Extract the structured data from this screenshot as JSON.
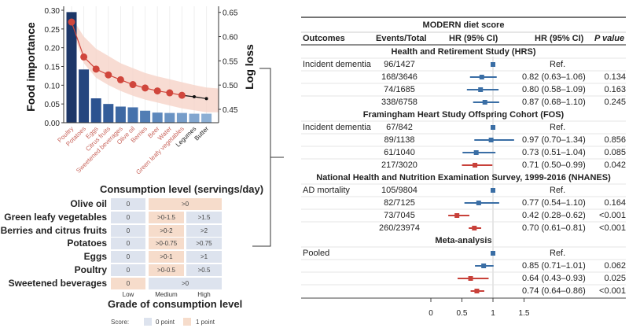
{
  "colors": {
    "bar_gradient": [
      "#1d3768",
      "#25467f",
      "#2c5290",
      "#345d9a",
      "#3d68a3",
      "#4672ac",
      "#527db4",
      "#5d88bc",
      "#6a93c3",
      "#769dc9",
      "#81a6cf",
      "#8cafd4"
    ],
    "line_red": "#d0463c",
    "band": "#f6d3c8",
    "label_red": "#c9665d",
    "cell_zero": "#dde3ee",
    "cell_one": "#f6dccb",
    "forest_blue": "#3a6ea5",
    "forest_red": "#c8413a"
  },
  "chart_data": [
    {
      "type": "bar",
      "categories": [
        "Poultry",
        "Potatoes",
        "Eggs",
        "Citrus fruits",
        "Sweetened beverages",
        "Olive oil",
        "Berries",
        "Beer",
        "Water",
        "Green leafy vegetables",
        "Legumes",
        "Butter"
      ],
      "category_label_highlight": [
        true,
        true,
        true,
        true,
        true,
        true,
        true,
        true,
        true,
        true,
        false,
        false
      ],
      "values": [
        0.295,
        0.142,
        0.065,
        0.05,
        0.043,
        0.041,
        0.032,
        0.027,
        0.026,
        0.026,
        0.024,
        0.024
      ],
      "ylabel": "Food importance",
      "ylim": [
        0,
        0.3
      ],
      "yticks": [
        "0.00",
        "0.05",
        "0.10",
        "0.15",
        "0.20",
        "0.25",
        "0.30"
      ],
      "secondary": {
        "type": "line",
        "ylabel": "Log loss",
        "ylim": [
          0.45,
          0.65
        ],
        "yticks": [
          "0.45",
          "0.50",
          "0.55",
          "0.60",
          "0.65"
        ],
        "values": [
          0.63,
          0.558,
          0.533,
          0.521,
          0.511,
          0.501,
          0.494,
          0.488,
          0.484,
          0.479,
          0.476,
          0.472
        ],
        "band_upper": [
          0.64,
          0.6,
          0.575,
          0.56,
          0.545,
          0.535,
          0.525,
          0.518,
          0.512,
          0.506,
          0.5,
          0.495
        ],
        "band_lower": [
          0.62,
          0.545,
          0.515,
          0.5,
          0.488,
          0.478,
          0.47,
          0.464,
          0.458,
          0.452,
          0.448,
          0.444
        ]
      },
      "grid": "vertical"
    },
    {
      "type": "table",
      "title": "Consumption level (servings/day)",
      "xlabel": "Grade of consumption level",
      "columns": [
        "Low",
        "Medium",
        "High"
      ],
      "rows": [
        {
          "label": "Olive oil",
          "cells": [
            {
              "text": "0",
              "score": 0,
              "span": 1
            },
            {
              "text": ">0",
              "score": 1,
              "span": 2
            }
          ]
        },
        {
          "label": "Green leafy vegetables",
          "cells": [
            {
              "text": "0",
              "score": 0,
              "span": 1
            },
            {
              "text": ">0-1.5",
              "score": 1,
              "span": 1
            },
            {
              "text": ">1.5",
              "score": 0,
              "span": 1
            }
          ]
        },
        {
          "label": "Berries and citrus fruits",
          "cells": [
            {
              "text": "0",
              "score": 0,
              "span": 1
            },
            {
              "text": ">0-2",
              "score": 1,
              "span": 1
            },
            {
              "text": ">2",
              "score": 0,
              "span": 1
            }
          ]
        },
        {
          "label": "Potatoes",
          "cells": [
            {
              "text": "0",
              "score": 0,
              "span": 1
            },
            {
              "text": ">0-0.75",
              "score": 1,
              "span": 1
            },
            {
              "text": ">0.75",
              "score": 0,
              "span": 1
            }
          ]
        },
        {
          "label": "Eggs",
          "cells": [
            {
              "text": "0",
              "score": 0,
              "span": 1
            },
            {
              "text": ">0-1",
              "score": 1,
              "span": 1
            },
            {
              "text": ">1",
              "score": 0,
              "span": 1
            }
          ]
        },
        {
          "label": "Poultry",
          "cells": [
            {
              "text": "0",
              "score": 0,
              "span": 1
            },
            {
              "text": ">0-0.5",
              "score": 1,
              "span": 1
            },
            {
              "text": ">0.5",
              "score": 0,
              "span": 1
            }
          ]
        },
        {
          "label": "Sweetened beverages",
          "cells": [
            {
              "text": "0",
              "score": 1,
              "span": 1
            },
            {
              "text": ">0",
              "score": 0,
              "span": 2
            }
          ]
        }
      ],
      "legend": {
        "title": "Score:",
        "items": [
          "0 point",
          "1 point"
        ]
      }
    },
    {
      "type": "forest",
      "title": "MODERN diet score",
      "headers": [
        "Outcomes",
        "Events/Total",
        "HR (95% CI)",
        "HR (95% CI)",
        "P value"
      ],
      "xticks": [
        "0",
        "0.5",
        "1",
        "1.5"
      ],
      "xlim": [
        0,
        1.5
      ],
      "reference": 1,
      "groups": [
        {
          "name": "Health and Retirement Study (HRS)",
          "outcome": "Incident dementia",
          "rows": [
            {
              "events": "96/1427",
              "hr": 1,
              "lo": 1,
              "hi": 1,
              "text": "Ref.",
              "p": "",
              "sig": false
            },
            {
              "events": "168/3646",
              "hr": 0.82,
              "lo": 0.63,
              "hi": 1.06,
              "text": "0.82 (0.63–1.06)",
              "p": "0.134",
              "sig": false
            },
            {
              "events": "74/1685",
              "hr": 0.8,
              "lo": 0.58,
              "hi": 1.09,
              "text": "0.80 (0.58–1.09)",
              "p": "0.163",
              "sig": false
            },
            {
              "events": "338/6758",
              "hr": 0.87,
              "lo": 0.68,
              "hi": 1.1,
              "text": "0.87 (0.68–1.10)",
              "p": "0.245",
              "sig": false
            }
          ]
        },
        {
          "name": "Framingham Heart Study Offspring Cohort (FOS)",
          "outcome": "Incident dementia",
          "rows": [
            {
              "events": "67/842",
              "hr": 1,
              "lo": 1,
              "hi": 1,
              "text": "Ref.",
              "p": "",
              "sig": false
            },
            {
              "events": "89/1138",
              "hr": 0.97,
              "lo": 0.7,
              "hi": 1.34,
              "text": "0.97 (0.70–1.34)",
              "p": "0.856",
              "sig": false
            },
            {
              "events": "61/1040",
              "hr": 0.73,
              "lo": 0.51,
              "hi": 1.04,
              "text": "0.73 (0.51–1.04)",
              "p": "0.085",
              "sig": false
            },
            {
              "events": "217/3020",
              "hr": 0.71,
              "lo": 0.5,
              "hi": 0.99,
              "text": "0.71 (0.50–0.99)",
              "p": "0.042",
              "sig": true
            }
          ]
        },
        {
          "name": "National Health and Nutrition Examination Survey, 1999-2016 (NHANES)",
          "outcome": "AD mortality",
          "rows": [
            {
              "events": "105/9804",
              "hr": 1,
              "lo": 1,
              "hi": 1,
              "text": "Ref.",
              "p": "",
              "sig": false
            },
            {
              "events": "82/7125",
              "hr": 0.77,
              "lo": 0.54,
              "hi": 1.1,
              "text": "0.77 (0.54–1.10)",
              "p": "0.164",
              "sig": false
            },
            {
              "events": "73/7045",
              "hr": 0.42,
              "lo": 0.28,
              "hi": 0.62,
              "text": "0.42 (0.28–0.62)",
              "p": "<0.001",
              "sig": true
            },
            {
              "events": "260/23974",
              "hr": 0.7,
              "lo": 0.61,
              "hi": 0.81,
              "text": "0.70 (0.61–0.81)",
              "p": "<0.001",
              "sig": true
            }
          ]
        },
        {
          "name": "Meta-analysis",
          "outcome": "Pooled",
          "rows": [
            {
              "events": "",
              "hr": 1,
              "lo": 1,
              "hi": 1,
              "text": "Ref.",
              "p": "",
              "sig": false
            },
            {
              "events": "",
              "hr": 0.85,
              "lo": 0.71,
              "hi": 1.01,
              "text": "0.85 (0.71–1.01)",
              "p": "0.062",
              "sig": false
            },
            {
              "events": "",
              "hr": 0.64,
              "lo": 0.43,
              "hi": 0.93,
              "text": "0.64 (0.43–0.93)",
              "p": "0.025",
              "sig": true
            },
            {
              "events": "",
              "hr": 0.74,
              "lo": 0.64,
              "hi": 0.86,
              "text": "0.74 (0.64–0.86)",
              "p": "<0.001",
              "sig": true
            }
          ]
        }
      ]
    }
  ]
}
